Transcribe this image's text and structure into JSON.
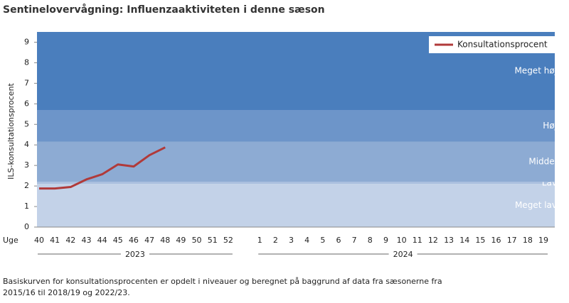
{
  "chart_data": {
    "type": "line",
    "title": "Sentinelovervågning: Influenzaaktiviteten i denne sæson",
    "y_label": "ILS-konsultationsprocent",
    "x_prefix": "Uge",
    "categories": [
      "40",
      "41",
      "42",
      "43",
      "44",
      "45",
      "46",
      "47",
      "48",
      "49",
      "50",
      "51",
      "52",
      null,
      "1",
      "2",
      "3",
      "4",
      "5",
      "6",
      "7",
      "8",
      "9",
      "10",
      "11",
      "12",
      "13",
      "14",
      "15",
      "16",
      "17",
      "18",
      "19"
    ],
    "series": [
      {
        "name": "Konsultationsprocent",
        "color": "#b03a3a",
        "values": [
          1.88,
          1.88,
          1.95,
          2.32,
          2.57,
          3.05,
          2.95,
          3.5,
          3.88,
          null,
          null,
          null,
          null,
          null,
          null,
          null,
          null,
          null,
          null,
          null,
          null,
          null,
          null,
          null,
          null,
          null,
          null,
          null,
          null,
          null,
          null,
          null,
          null
        ]
      }
    ],
    "bands": [
      {
        "name": "Meget lav",
        "from": 0,
        "to": 2.1,
        "color": "#c3d2e8"
      },
      {
        "name": "Lav",
        "from": 2.1,
        "to": 2.2,
        "color": "#aac0df"
      },
      {
        "name": "Middel",
        "from": 2.2,
        "to": 4.15,
        "color": "#8dabd3"
      },
      {
        "name": "Høj",
        "from": 4.15,
        "to": 5.7,
        "color": "#6d95c9"
      },
      {
        "name": "Meget høj",
        "from": 5.7,
        "to": 9.5,
        "color": "#4a7ebd"
      }
    ],
    "years": [
      "2023",
      "2024"
    ],
    "ylim": [
      0,
      9.5
    ],
    "yticks": [
      0,
      1,
      2,
      3,
      4,
      5,
      6,
      7,
      8,
      9
    ],
    "legend": "top-right",
    "footnote": [
      "Basiskurven  for konsultationsprocenten  er opdelt i niveauer og beregnet  på baggrund  af data fra sæsonerne  fra",
      "2015/16  til 2018/19  og 2022/23."
    ]
  }
}
